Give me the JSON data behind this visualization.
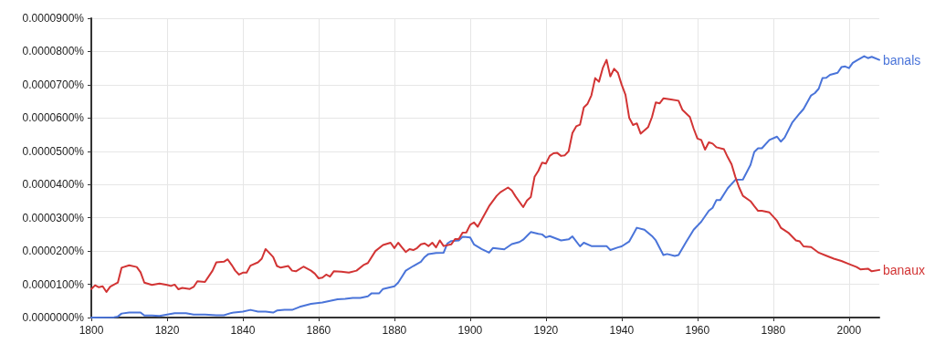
{
  "chart_data": {
    "type": "line",
    "xlim": [
      1800,
      2008
    ],
    "xticks": [
      1800,
      1820,
      1840,
      1860,
      1880,
      1900,
      1920,
      1940,
      1960,
      1980,
      2000
    ],
    "ylim": [
      0,
      9e-05
    ],
    "yticks": [
      {
        "value": 0,
        "label": "0.0000000%"
      },
      {
        "value": 1e-05,
        "label": "0.0000100%"
      },
      {
        "value": 2e-05,
        "label": "0.0000200%"
      },
      {
        "value": 3e-05,
        "label": "0.0000300%"
      },
      {
        "value": 4e-05,
        "label": "0.0000400%"
      },
      {
        "value": 5e-05,
        "label": "0.0000500%"
      },
      {
        "value": 6e-05,
        "label": "0.0000600%"
      },
      {
        "value": 7e-05,
        "label": "0.0000700%"
      },
      {
        "value": 8e-05,
        "label": "0.0000800%"
      },
      {
        "value": 9e-05,
        "label": "0.0000900%"
      }
    ],
    "grid": true,
    "legend": false,
    "marker": "none",
    "line_style": "solid",
    "series": [
      {
        "name": "banals",
        "color": "#4a74d9",
        "x": [
          1800,
          1806,
          1807,
          1808,
          1810,
          1813,
          1814,
          1816,
          1818,
          1820,
          1822,
          1825,
          1827,
          1830,
          1833,
          1835,
          1837,
          1840,
          1842,
          1844,
          1846,
          1848,
          1849,
          1851,
          1853,
          1855,
          1858,
          1861,
          1863,
          1865,
          1867,
          1869,
          1871,
          1873,
          1874,
          1876,
          1877,
          1880,
          1881,
          1882,
          1883,
          1885,
          1887,
          1888,
          1889,
          1891,
          1893,
          1894,
          1895,
          1897,
          1898,
          1900,
          1901,
          1903,
          1905,
          1906,
          1909,
          1911,
          1913,
          1914,
          1916,
          1918,
          1919,
          1920,
          1921,
          1924,
          1926,
          1927,
          1929,
          1930,
          1932,
          1936,
          1937,
          1939,
          1940,
          1942,
          1944,
          1946,
          1948,
          1949,
          1951,
          1952,
          1954,
          1955,
          1957,
          1959,
          1961,
          1963,
          1964,
          1965,
          1966,
          1968,
          1970,
          1972,
          1974,
          1975,
          1976,
          1977,
          1979,
          1981,
          1982,
          1983,
          1985,
          1987,
          1988,
          1990,
          1991,
          1992,
          1993,
          1994,
          1995,
          1997,
          1998,
          1999,
          2000,
          2001,
          2002,
          2004,
          2005,
          2006,
          2008
        ],
        "values": [
          0,
          1e-07,
          3e-07,
          1.2e-06,
          1.5e-06,
          1.5e-06,
          6e-07,
          6e-07,
          5e-07,
          9e-07,
          1.3e-06,
          1.3e-06,
          9e-07,
          9e-07,
          7e-07,
          7e-07,
          1.4e-06,
          1.8e-06,
          2.3e-06,
          1.8e-06,
          1.8e-06,
          1.5e-06,
          2.1e-06,
          2.3e-06,
          2.3e-06,
          3.2e-06,
          4.1e-06,
          4.5e-06,
          5e-06,
          5.5e-06,
          5.6e-06,
          5.9e-06,
          5.9e-06,
          6.4e-06,
          7.3e-06,
          7.3e-06,
          8.6e-06,
          9.4e-06,
          1.05e-05,
          1.23e-05,
          1.41e-05,
          1.55e-05,
          1.68e-05,
          1.82e-05,
          1.91e-05,
          1.94e-05,
          1.95e-05,
          2.23e-05,
          2.3e-05,
          2.32e-05,
          2.43e-05,
          2.41e-05,
          2.2e-05,
          2.06e-05,
          1.95e-05,
          2.09e-05,
          2.05e-05,
          2.21e-05,
          2.27e-05,
          2.34e-05,
          2.57e-05,
          2.52e-05,
          2.5e-05,
          2.41e-05,
          2.45e-05,
          2.32e-05,
          2.35e-05,
          2.44e-05,
          2.14e-05,
          2.25e-05,
          2.15e-05,
          2.15e-05,
          2.03e-05,
          2.11e-05,
          2.14e-05,
          2.29e-05,
          2.7e-05,
          2.64e-05,
          2.45e-05,
          2.32e-05,
          1.88e-05,
          1.91e-05,
          1.85e-05,
          1.88e-05,
          2.27e-05,
          2.64e-05,
          2.88e-05,
          3.21e-05,
          3.3e-05,
          3.53e-05,
          3.53e-05,
          3.89e-05,
          4.14e-05,
          4.15e-05,
          4.59e-05,
          4.98e-05,
          5.09e-05,
          5.09e-05,
          5.34e-05,
          5.44e-05,
          5.29e-05,
          5.41e-05,
          5.86e-05,
          6.14e-05,
          6.27e-05,
          6.68e-05,
          6.75e-05,
          6.88e-05,
          7.2e-05,
          7.21e-05,
          7.3e-05,
          7.36e-05,
          7.53e-05,
          7.55e-05,
          7.5e-05,
          7.66e-05,
          7.73e-05,
          7.86e-05,
          7.8e-05,
          7.84e-05,
          7.75e-05
        ]
      },
      {
        "name": "banaux",
        "color": "#d23434",
        "x": [
          1800,
          1801,
          1802,
          1803,
          1804,
          1805,
          1807,
          1808,
          1810,
          1812,
          1813,
          1814,
          1816,
          1818,
          1820,
          1821,
          1822,
          1823,
          1824,
          1826,
          1827,
          1828,
          1830,
          1832,
          1833,
          1835,
          1836,
          1837,
          1838,
          1839,
          1840,
          1841,
          1842,
          1844,
          1845,
          1846,
          1848,
          1849,
          1850,
          1852,
          1853,
          1854,
          1856,
          1858,
          1859,
          1860,
          1861,
          1862,
          1863,
          1864,
          1866,
          1868,
          1870,
          1872,
          1873,
          1875,
          1877,
          1879,
          1880,
          1881,
          1882,
          1883,
          1884,
          1885,
          1886,
          1887,
          1888,
          1889,
          1890,
          1891,
          1892,
          1893,
          1895,
          1896,
          1897,
          1898,
          1899,
          1900,
          1901,
          1902,
          1904,
          1905,
          1907,
          1908,
          1910,
          1911,
          1912,
          1914,
          1915,
          1916,
          1917,
          1918,
          1919,
          1920,
          1921,
          1922,
          1923,
          1924,
          1925,
          1926,
          1927,
          1928,
          1929,
          1930,
          1931,
          1932,
          1933,
          1934,
          1935,
          1936,
          1937,
          1938,
          1939,
          1940,
          1941,
          1942,
          1943,
          1944,
          1945,
          1947,
          1948,
          1949,
          1950,
          1951,
          1953,
          1955,
          1956,
          1958,
          1959,
          1960,
          1961,
          1962,
          1963,
          1964,
          1965,
          1967,
          1968,
          1969,
          1970,
          1971,
          1972,
          1974,
          1975,
          1976,
          1977,
          1979,
          1981,
          1982,
          1984,
          1986,
          1987,
          1988,
          1990,
          1992,
          1994,
          1996,
          1998,
          2000,
          2002,
          2003,
          2005,
          2006,
          2008
        ],
        "values": [
          8.6e-06,
          9.7e-06,
          9.1e-06,
          9.4e-06,
          7.7e-06,
          9.3e-06,
          1.05e-05,
          1.5e-05,
          1.57e-05,
          1.52e-05,
          1.36e-05,
          1.05e-05,
          9.8e-06,
          1.02e-05,
          9.8e-06,
          9.5e-06,
          9.9e-06,
          8.5e-06,
          8.9e-06,
          8.6e-06,
          9.2e-06,
          1.09e-05,
          1.07e-05,
          1.41e-05,
          1.66e-05,
          1.68e-05,
          1.75e-05,
          1.59e-05,
          1.41e-05,
          1.29e-05,
          1.35e-05,
          1.35e-05,
          1.56e-05,
          1.66e-05,
          1.77e-05,
          2.06e-05,
          1.82e-05,
          1.55e-05,
          1.5e-05,
          1.55e-05,
          1.41e-05,
          1.39e-05,
          1.53e-05,
          1.41e-05,
          1.32e-05,
          1.18e-05,
          1.2e-05,
          1.29e-05,
          1.23e-05,
          1.39e-05,
          1.38e-05,
          1.35e-05,
          1.41e-05,
          1.59e-05,
          1.64e-05,
          2e-05,
          2.18e-05,
          2.25e-05,
          2.09e-05,
          2.25e-05,
          2.11e-05,
          1.97e-05,
          2.06e-05,
          2.03e-05,
          2.09e-05,
          2.2e-05,
          2.23e-05,
          2.15e-05,
          2.25e-05,
          2.11e-05,
          2.32e-05,
          2.15e-05,
          2.2e-05,
          2.36e-05,
          2.36e-05,
          2.55e-05,
          2.56e-05,
          2.79e-05,
          2.86e-05,
          2.73e-05,
          3.14e-05,
          3.35e-05,
          3.66e-05,
          3.77e-05,
          3.91e-05,
          3.82e-05,
          3.64e-05,
          3.32e-05,
          3.52e-05,
          3.62e-05,
          4.23e-05,
          4.41e-05,
          4.66e-05,
          4.63e-05,
          4.86e-05,
          4.94e-05,
          4.95e-05,
          4.86e-05,
          4.88e-05,
          5e-05,
          5.55e-05,
          5.75e-05,
          5.8e-05,
          6.32e-05,
          6.43e-05,
          6.68e-05,
          7.2e-05,
          7.09e-05,
          7.5e-05,
          7.75e-05,
          7.25e-05,
          7.48e-05,
          7.36e-05,
          7e-05,
          6.7e-05,
          6e-05,
          5.79e-05,
          5.84e-05,
          5.53e-05,
          5.73e-05,
          6.03e-05,
          6.47e-05,
          6.44e-05,
          6.59e-05,
          6.56e-05,
          6.52e-05,
          6.25e-05,
          6.03e-05,
          5.68e-05,
          5.38e-05,
          5.34e-05,
          5.05e-05,
          5.27e-05,
          5.23e-05,
          5.12e-05,
          5.06e-05,
          4.82e-05,
          4.61e-05,
          4.23e-05,
          3.91e-05,
          3.66e-05,
          3.5e-05,
          3.35e-05,
          3.21e-05,
          3.21e-05,
          3.16e-05,
          2.91e-05,
          2.7e-05,
          2.55e-05,
          2.32e-05,
          2.29e-05,
          2.14e-05,
          2.12e-05,
          1.95e-05,
          1.86e-05,
          1.77e-05,
          1.7e-05,
          1.61e-05,
          1.52e-05,
          1.45e-05,
          1.47e-05,
          1.39e-05,
          1.43e-05
        ]
      }
    ]
  }
}
